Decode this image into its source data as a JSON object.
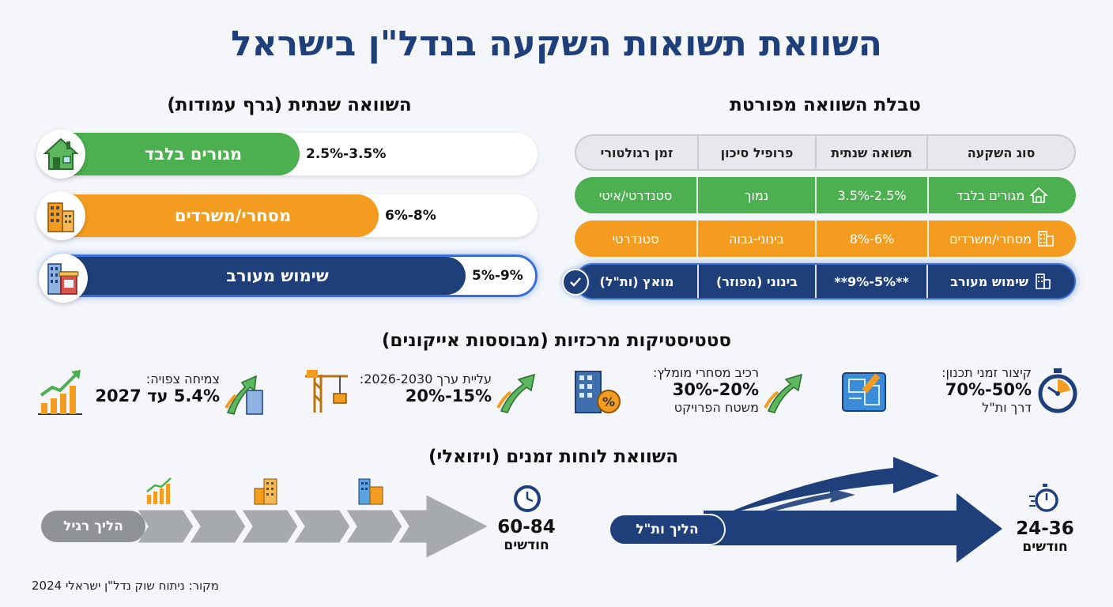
{
  "title": "השוואת תשואות השקעה בנדל\"ן בישראל",
  "bar_section": {
    "title": "השוואה שנתית (גרף עמודות)",
    "bars": [
      {
        "label": "מגורים בלבד",
        "value_text": "2.5%-3.5%",
        "fill_fraction": 0.52,
        "color": "#4caf50",
        "icon": "house-icon"
      },
      {
        "label": "מסחרי/משרדים",
        "value_text": "6%-8%",
        "fill_fraction": 0.68,
        "color": "#f39c1f",
        "icon": "office-buildings-icon"
      },
      {
        "label": "שימוש מעורב",
        "value_text": "5%-9%",
        "fill_fraction": 0.85,
        "color": "#1f3f7a",
        "icon": "mixed-use-buildings-icon"
      }
    ]
  },
  "table_section": {
    "title": "טבלת השוואה מפורטת",
    "headers": [
      "סוג השקעה",
      "תשואה שנתית",
      "פרופיל סיכון",
      "זמן רגולטורי"
    ],
    "rows": [
      {
        "type": "מגורים בלבד",
        "yield": "2.5%-3.5%",
        "risk": "נמוך",
        "reg_time": "סטנדרטי/איטי",
        "icon": "house-outline-icon"
      },
      {
        "type": "מסחרי/משרדים",
        "yield": "6%-8%",
        "risk": "בינוני-גבוה",
        "reg_time": "סטנדרטי",
        "icon": "office-outline-icon"
      },
      {
        "type": "שימוש מעורב",
        "yield": "**5%-9%**",
        "risk": "בינוני (מפוזר)",
        "reg_time": "מואץ (ות\"ל)",
        "icon": "building-outline-icon"
      }
    ],
    "check_icon": "check-circle-icon"
  },
  "stats_section": {
    "title": "סטטיסטיקות מרכזיות (מבוססות אייקונים)",
    "items": [
      {
        "line1": "קיצור זמני תכנון:",
        "big": "50%-70%",
        "line3": "דרך ות\"ל",
        "icon": "stopwatch-icon",
        "secondary_icon": "blueprint-icon"
      },
      {
        "line1": "רכיב מסחרי מומלץ:",
        "big": "20%-30%",
        "line3": "משטח הפרויקט",
        "icon": "building-percent-icon",
        "secondary_icon": "rising-arrow-icon"
      },
      {
        "line1": "עליית ערך 2026-2030:",
        "big": "15%-20%",
        "line3": "",
        "icon": "construction-crane-icon",
        "secondary_icon": "rising-arrow-icon"
      },
      {
        "line1": "צמיחה צפויה:",
        "big": "5.4% עד 2027",
        "line3": "",
        "icon": "growth-chart-icon",
        "secondary_icon": "city-arrow-icon"
      }
    ]
  },
  "timeline_section": {
    "title": "השוואת לוחות זמנים (ויזואלי)",
    "regular": {
      "label": "הליך רגיל",
      "duration_number": "60-84",
      "duration_unit": "חודשים",
      "color": "#9ea1a6"
    },
    "fast": {
      "label": "הליך ות\"ל",
      "duration_number": "24-36",
      "duration_unit": "חודשים",
      "color": "#1f3f7a"
    }
  },
  "source": "מקור: ניתוח שוק נדל\"ן ישראלי 2024"
}
